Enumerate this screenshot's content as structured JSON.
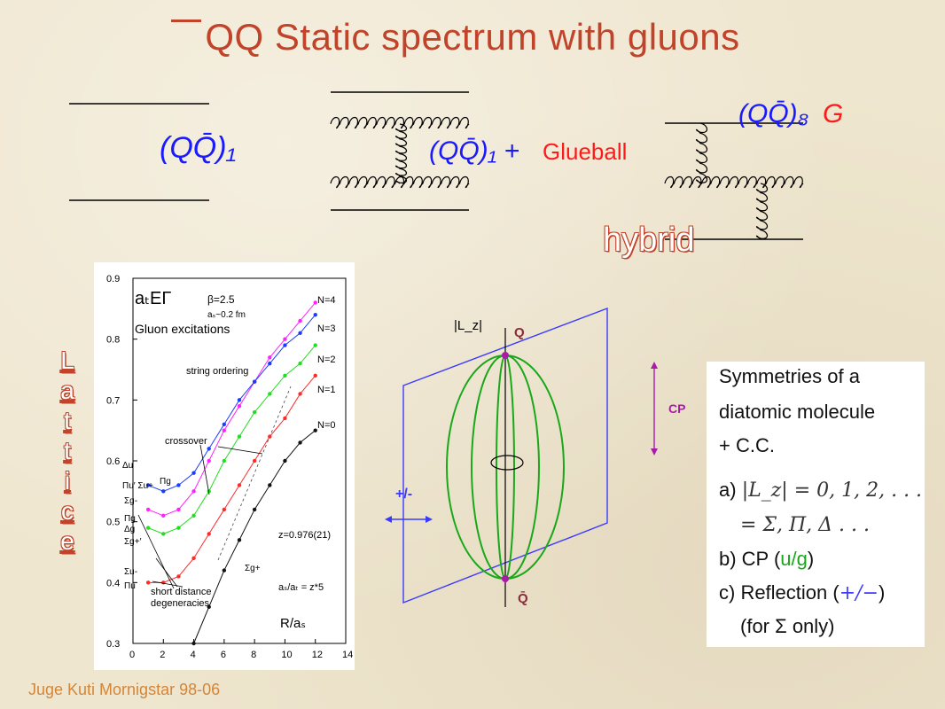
{
  "slide": {
    "title": "QQ Static spectrum with gluons",
    "credit": "Juge Kuti Mornigstar 98-06",
    "lattice_label": [
      "L",
      "a",
      "t",
      "t",
      "i",
      "c",
      "e"
    ],
    "hybrid_label": "hybrid"
  },
  "diagrams": {
    "qq1": "(QQ̄)₁",
    "qq1_plus": "(QQ̄)₁ +",
    "glueball": "Glueball",
    "qq8": "(QQ̄)₈",
    "qq8_g": "G"
  },
  "plot": {
    "title_sym": "aₜEΓ",
    "subtitle": "Gluon excitations",
    "beta": "β=2.5",
    "spacing": "aₛ~0.2 fm",
    "string_ordering": "string ordering",
    "crossover": "crossover",
    "short_distance": "short distance",
    "degeneracies": "degeneracies",
    "ratio": "aₛ/aₜ = z*5",
    "z_value": "z=0.976(21)",
    "xlabel": "R/aₛ",
    "x_ticks": [
      "0",
      "2",
      "4",
      "6",
      "8",
      "10",
      "12",
      "14"
    ],
    "y_ticks": [
      "0.3",
      "0.4",
      "0.5",
      "0.6",
      "0.7",
      "0.8",
      "0.9"
    ],
    "series_labels": [
      "N=4",
      "N=3",
      "N=2",
      "N=1",
      "N=0"
    ],
    "state_labels": [
      "Δu",
      "Πu′ Σu+",
      "Πg",
      "Σg-",
      "Πg",
      "Δg",
      "Σg+′",
      "Σu-",
      "Πu",
      "Σg+"
    ]
  },
  "molecule": {
    "lz": "|L_z|",
    "q_top": "Q",
    "q_bottom": "Q̄",
    "cp": "CP",
    "reflection": "+/-"
  },
  "symmetries": {
    "line1": "Symmetries of a",
    "line2": "diatomic molecule",
    "line3": "+ C.C.",
    "a_prefix": "a)",
    "a_math": "|L_z| = 0, 1, 2, . . .",
    "a_math2": "= Σ, Π, Δ . . .",
    "b_prefix": "b) CP (",
    "b_highlight": "u/g",
    "b_suffix": ")",
    "c_prefix": "c) Reflection (",
    "c_highlight": "+/−",
    "c_suffix": ")",
    "d_line": "(for Σ only)"
  },
  "chart_data": {
    "type": "scatter",
    "title": "",
    "xlabel": "R/aₛ",
    "ylabel": "",
    "xlim": [
      0,
      14
    ],
    "ylim": [
      0.3,
      0.9
    ],
    "series": [
      {
        "name": "N=4",
        "color": "#ff22ff",
        "x": [
          1,
          2,
          3,
          4,
          5,
          6,
          7,
          8,
          9,
          10,
          11,
          12
        ],
        "y": [
          0.52,
          0.51,
          0.52,
          0.55,
          0.6,
          0.65,
          0.69,
          0.73,
          0.77,
          0.8,
          0.83,
          0.86
        ]
      },
      {
        "name": "N=3",
        "color": "#1a3cff",
        "x": [
          1,
          2,
          3,
          4,
          5,
          6,
          7,
          8,
          9,
          10,
          11,
          12
        ],
        "y": [
          0.56,
          0.55,
          0.56,
          0.58,
          0.62,
          0.66,
          0.7,
          0.73,
          0.76,
          0.79,
          0.81,
          0.84
        ]
      },
      {
        "name": "N=2",
        "color": "#22dd22",
        "x": [
          1,
          2,
          3,
          4,
          5,
          6,
          7,
          8,
          9,
          10,
          11,
          12
        ],
        "y": [
          0.49,
          0.48,
          0.49,
          0.51,
          0.55,
          0.6,
          0.64,
          0.68,
          0.71,
          0.74,
          0.76,
          0.79
        ]
      },
      {
        "name": "N=1",
        "color": "#ff2a2a",
        "x": [
          1,
          2,
          3,
          4,
          5,
          6,
          7,
          8,
          9,
          10,
          11,
          12
        ],
        "y": [
          0.4,
          0.4,
          0.41,
          0.44,
          0.48,
          0.52,
          0.56,
          0.6,
          0.64,
          0.67,
          0.71,
          0.74
        ]
      },
      {
        "name": "N=0",
        "color": "#111111",
        "x": [
          4,
          5,
          6,
          7,
          8,
          9,
          10,
          11,
          12
        ],
        "y": [
          0.3,
          0.36,
          0.42,
          0.47,
          0.52,
          0.56,
          0.6,
          0.63,
          0.65
        ]
      }
    ]
  }
}
